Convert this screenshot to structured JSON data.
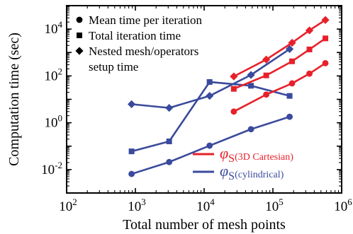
{
  "chart_data": {
    "type": "line",
    "xlabel": "Total number of mesh points",
    "ylabel": "Computation time (sec)",
    "x_scale": "log",
    "y_scale": "log",
    "xlim": [
      100,
      1000000
    ],
    "ylim": [
      0.001,
      100000
    ],
    "x_ticks": [
      {
        "value": 100,
        "base": "10",
        "exp": "2"
      },
      {
        "value": 1000,
        "base": "10",
        "exp": "3"
      },
      {
        "value": 10000,
        "base": "10",
        "exp": "4"
      },
      {
        "value": 100000,
        "base": "10",
        "exp": "5"
      },
      {
        "value": 1000000,
        "base": "10",
        "exp": "6"
      }
    ],
    "y_ticks": [
      {
        "value": 0.01,
        "base": "10",
        "exp": "-2"
      },
      {
        "value": 1,
        "base": "10",
        "exp": "0"
      },
      {
        "value": 100,
        "base": "10",
        "exp": "2"
      },
      {
        "value": 10000,
        "base": "10",
        "exp": "4"
      }
    ],
    "grid": false,
    "marker_legend_placement": "top-left",
    "color_legend_placement": "bottom-right",
    "marker_legend": [
      {
        "marker": "circle",
        "label": "Mean time per iteration"
      },
      {
        "marker": "square",
        "label": "Total iteration time"
      },
      {
        "marker": "diamond",
        "label": "Nested mesh/operators setup time"
      }
    ],
    "marker_legend_lines": [
      "Nested mesh/operators",
      "setup time"
    ],
    "color_legend": [
      {
        "symbol": "φ",
        "subscript": "S",
        "label": "(3D Cartesian)",
        "color": "#e8202a"
      },
      {
        "symbol": "φ",
        "subscript": "S",
        "label": "(cylindrical)",
        "color": "#3a4a9c"
      }
    ],
    "colors": {
      "cartesian": "#e8202a",
      "cylindrical": "#3a4a9c",
      "axis": "#000000"
    },
    "series": [
      {
        "group": "cylindrical",
        "marker": "circle",
        "x": [
          880,
          3100,
          12000,
          48000,
          175000
        ],
        "y": [
          0.0065,
          0.021,
          0.105,
          0.53,
          1.8
        ]
      },
      {
        "group": "cylindrical",
        "marker": "square",
        "x": [
          880,
          3100,
          12000,
          48000,
          175000
        ],
        "y": [
          0.06,
          0.16,
          55,
          38,
          14
        ]
      },
      {
        "group": "cylindrical",
        "marker": "diamond",
        "x": [
          880,
          3100,
          12000,
          48000,
          175000
        ],
        "y": [
          6.2,
          4.3,
          14,
          110,
          1400
        ]
      },
      {
        "group": "cartesian",
        "marker": "circle",
        "x": [
          27000,
          80000,
          190000,
          340000,
          580000
        ],
        "y": [
          3,
          16,
          48,
          125,
          350
        ]
      },
      {
        "group": "cartesian",
        "marker": "square",
        "x": [
          27000,
          80000,
          190000,
          340000,
          580000
        ],
        "y": [
          28,
          105,
          420,
          1350,
          4000
        ]
      },
      {
        "group": "cartesian",
        "marker": "diamond",
        "x": [
          27000,
          80000,
          190000,
          340000,
          580000
        ],
        "y": [
          95,
          500,
          2600,
          8800,
          24500
        ]
      }
    ]
  }
}
